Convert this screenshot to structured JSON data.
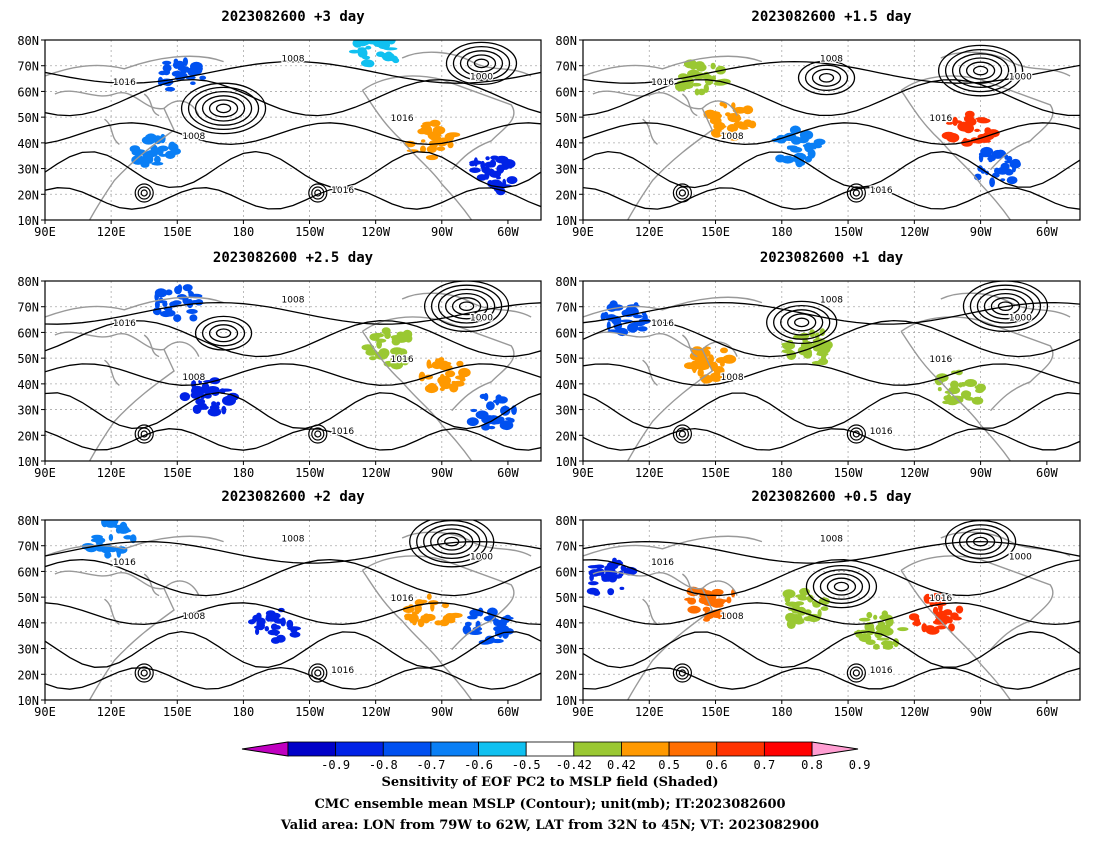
{
  "panels": [
    {
      "title": "2023082600  +3 day"
    },
    {
      "title": "2023082600  +1.5 day"
    },
    {
      "title": "2023082600  +2.5 day"
    },
    {
      "title": "2023082600  +1 day"
    },
    {
      "title": "2023082600  +2 day"
    },
    {
      "title": "2023082600  +0.5 day"
    }
  ],
  "lat_labels": [
    "80N",
    "70N",
    "60N",
    "50N",
    "40N",
    "30N",
    "20N",
    "10N"
  ],
  "lon_labels": [
    "90E",
    "120E",
    "150E",
    "180",
    "150W",
    "120W",
    "90W",
    "60W"
  ],
  "contour_labels": [
    "1000",
    "1008",
    "1016"
  ],
  "colorbar": {
    "labels": [
      "-0.9",
      "-0.8",
      "-0.7",
      "-0.6",
      "-0.5",
      "-0.42",
      "0.42",
      "0.5",
      "0.6",
      "0.7",
      "0.8",
      "0.9"
    ],
    "colors": [
      "#c000c0",
      "#0000c8",
      "#0022e6",
      "#0050f0",
      "#0a7ff5",
      "#10c0f0",
      "#ffffff",
      "#9ac832",
      "#ff9900",
      "#ff6e00",
      "#ff3300",
      "#ff0000",
      "#ff9ed2"
    ]
  },
  "caption": {
    "line1": "Sensitivity of EOF PC2 to MSLP field (Shaded)",
    "line2": "CMC ensemble mean MSLP (Contour); unit(mb); IT:2023082600",
    "line3": "Valid area: LON from 79W to 62W, LAT from 32N to 45N; VT: 2023082900"
  }
}
